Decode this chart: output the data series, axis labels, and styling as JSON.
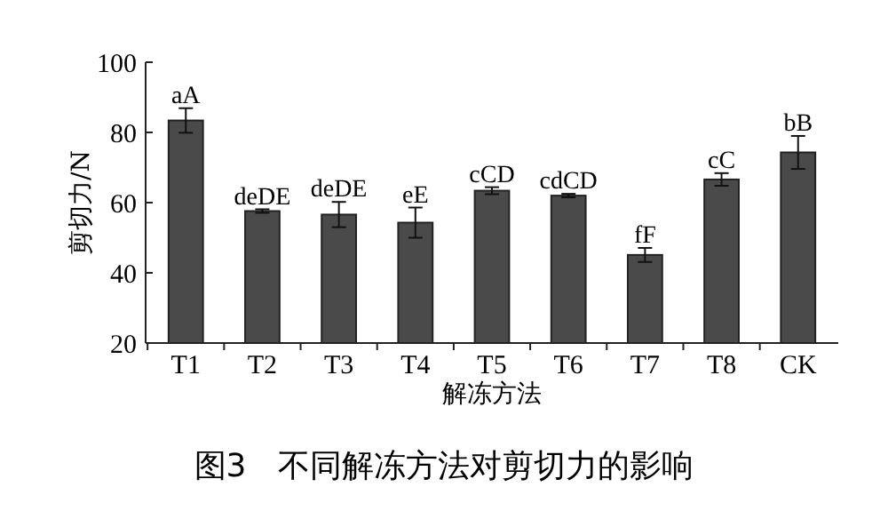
{
  "chart_data": {
    "type": "bar",
    "xlabel": "解冻方法",
    "ylabel": "剪切力/N",
    "annotations": [
      "图3　不同解冻方法对剪切力的影响"
    ],
    "categories": [
      "T1",
      "T2",
      "T3",
      "T4",
      "T5",
      "T6",
      "T7",
      "T8",
      "CK"
    ],
    "values": [
      83.4,
      57.6,
      56.6,
      54.3,
      63.4,
      62,
      45.1,
      66.6,
      74.3
    ],
    "errors": [
      3.5,
      0.5,
      3.6,
      4.3,
      1,
      0.5,
      2,
      1.8,
      4.7
    ],
    "value_labels": [
      "aA",
      "deDE",
      "deDE",
      "eE",
      "cCD",
      "cdCD",
      "fF",
      "cC",
      "bB"
    ],
    "color": "#4a4a4a",
    "ylim": [
      20,
      100
    ],
    "yticks": [
      20,
      40,
      60,
      80,
      100
    ],
    "grid": false
  }
}
